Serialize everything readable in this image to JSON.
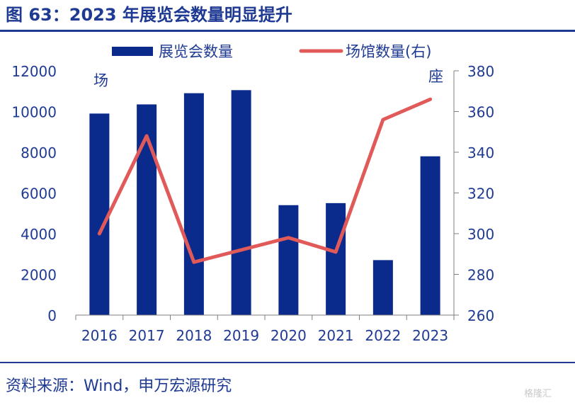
{
  "header": {
    "title": "图 63：2023 年展览会数量明显提升"
  },
  "footer": {
    "source": "资料来源：Wind，申万宏源研究",
    "watermark": "格隆汇"
  },
  "chart_data": {
    "type": "bar",
    "categories": [
      "2016",
      "2017",
      "2018",
      "2019",
      "2020",
      "2021",
      "2022",
      "2023"
    ],
    "series": [
      {
        "name": "展览会数量",
        "type": "bar",
        "axis": "left",
        "color": "#0a2a8c",
        "values": [
          9900,
          10350,
          10900,
          11050,
          5400,
          5500,
          2700,
          7800
        ]
      },
      {
        "name": "场馆数量(右)",
        "type": "line",
        "axis": "right",
        "color": "#e05a5a",
        "values": [
          300,
          348,
          286,
          292,
          298,
          291,
          356,
          366
        ]
      }
    ],
    "ylim_left": [
      0,
      12000
    ],
    "yticks_left": [
      0,
      2000,
      4000,
      6000,
      8000,
      10000,
      12000
    ],
    "ylim_right": [
      260,
      380
    ],
    "yticks_right": [
      260,
      280,
      300,
      320,
      340,
      360,
      380
    ],
    "left_unit": "场",
    "right_unit": "座",
    "legend_position": "top",
    "grid": false
  }
}
